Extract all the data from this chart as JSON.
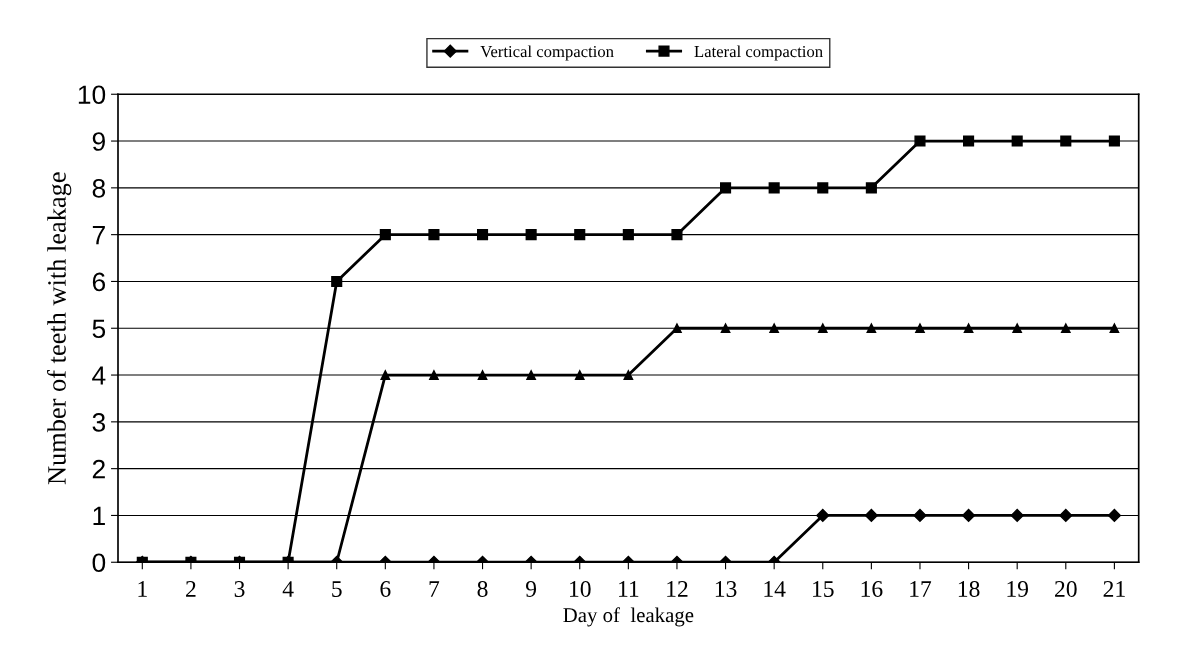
{
  "chart_data": {
    "type": "line",
    "xlabel": "Day of  leakage",
    "ylabel": "Number of teeth with leakage",
    "categories": [
      "1",
      "2",
      "3",
      "4",
      "5",
      "6",
      "7",
      "8",
      "9",
      "10",
      "11",
      "12",
      "13",
      "14",
      "15",
      "16",
      "17",
      "18",
      "19",
      "20",
      "21"
    ],
    "series": [
      {
        "name": "Vertical compaction",
        "color": "#000000",
        "marker": "diamond",
        "values": [
          0,
          0,
          0,
          0,
          0,
          0,
          0,
          0,
          0,
          0,
          0,
          0,
          0,
          0,
          1,
          1,
          1,
          1,
          1,
          1,
          1
        ]
      },
      {
        "name": "Lateral compaction",
        "color": "#000000",
        "marker": "square",
        "values": [
          0,
          0,
          0,
          0,
          6,
          7,
          7,
          7,
          7,
          7,
          7,
          7,
          8,
          8,
          8,
          8,
          9,
          9,
          9,
          9,
          9
        ]
      },
      {
        "color": "#000000",
        "marker": "triangle",
        "values": [
          0,
          0,
          0,
          0,
          0,
          4,
          4,
          4,
          4,
          4,
          4,
          5,
          5,
          5,
          5,
          5,
          5,
          5,
          5,
          5,
          5
        ]
      }
    ],
    "ylim": [
      0,
      10
    ],
    "yticks": [
      0,
      1,
      2,
      3,
      4,
      5,
      6,
      7,
      8,
      9,
      10
    ],
    "grid": "y",
    "legend": "top",
    "line_style": "solid"
  }
}
